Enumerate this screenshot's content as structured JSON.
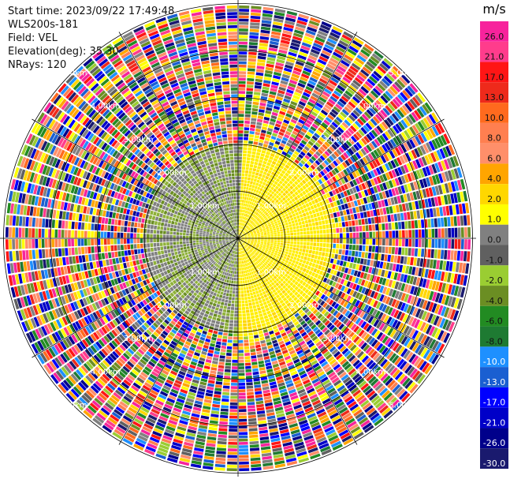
{
  "header": {
    "start_time": "Start time: 2023/09/22 17:49:48",
    "instrument": "WLS200s-181",
    "field": "Field: VEL",
    "elevation": "Elevation(deg): 35.30",
    "nrays": "NRays: 120"
  },
  "chart_data": {
    "type": "heatmap",
    "projection": "polar-ppi",
    "field": "VEL",
    "units": "m/s",
    "nrays": 120,
    "range_rings_km": [
      1.0,
      2.0,
      3.0,
      4.0,
      5.0
    ],
    "range_ring_labels": [
      "1.00km",
      "2.00km",
      "3.00km",
      "4.00km",
      "5.00km"
    ],
    "colorbar": {
      "title": "m/s",
      "ticks": [
        "26.0",
        "21.0",
        "17.0",
        "13.0",
        "10.0",
        "8.0",
        "6.0",
        "4.0",
        "2.0",
        "1.0",
        "0.0",
        "-1.0",
        "-2.0",
        "-4.0",
        "-6.0",
        "-8.0",
        "-10.0",
        "-13.0",
        "-17.0",
        "-21.0",
        "-26.0",
        "-30.0"
      ],
      "colors": [
        "#f7239c",
        "#ff3c8c",
        "#ff1515",
        "#ee2a1b",
        "#ff6a1e",
        "#ff7f50",
        "#ff8f6a",
        "#ffa500",
        "#ffd700",
        "#ffff00",
        "#808080",
        "#606060",
        "#9acd32",
        "#6b8e23",
        "#228b22",
        "#1e7a32",
        "#1e90ff",
        "#1a5fd1",
        "#0000ff",
        "#0000c8",
        "#00008b",
        "#1a1a6e"
      ]
    },
    "inner_region_km": 2.0,
    "noise_start_km": 2.2,
    "grid": true
  }
}
